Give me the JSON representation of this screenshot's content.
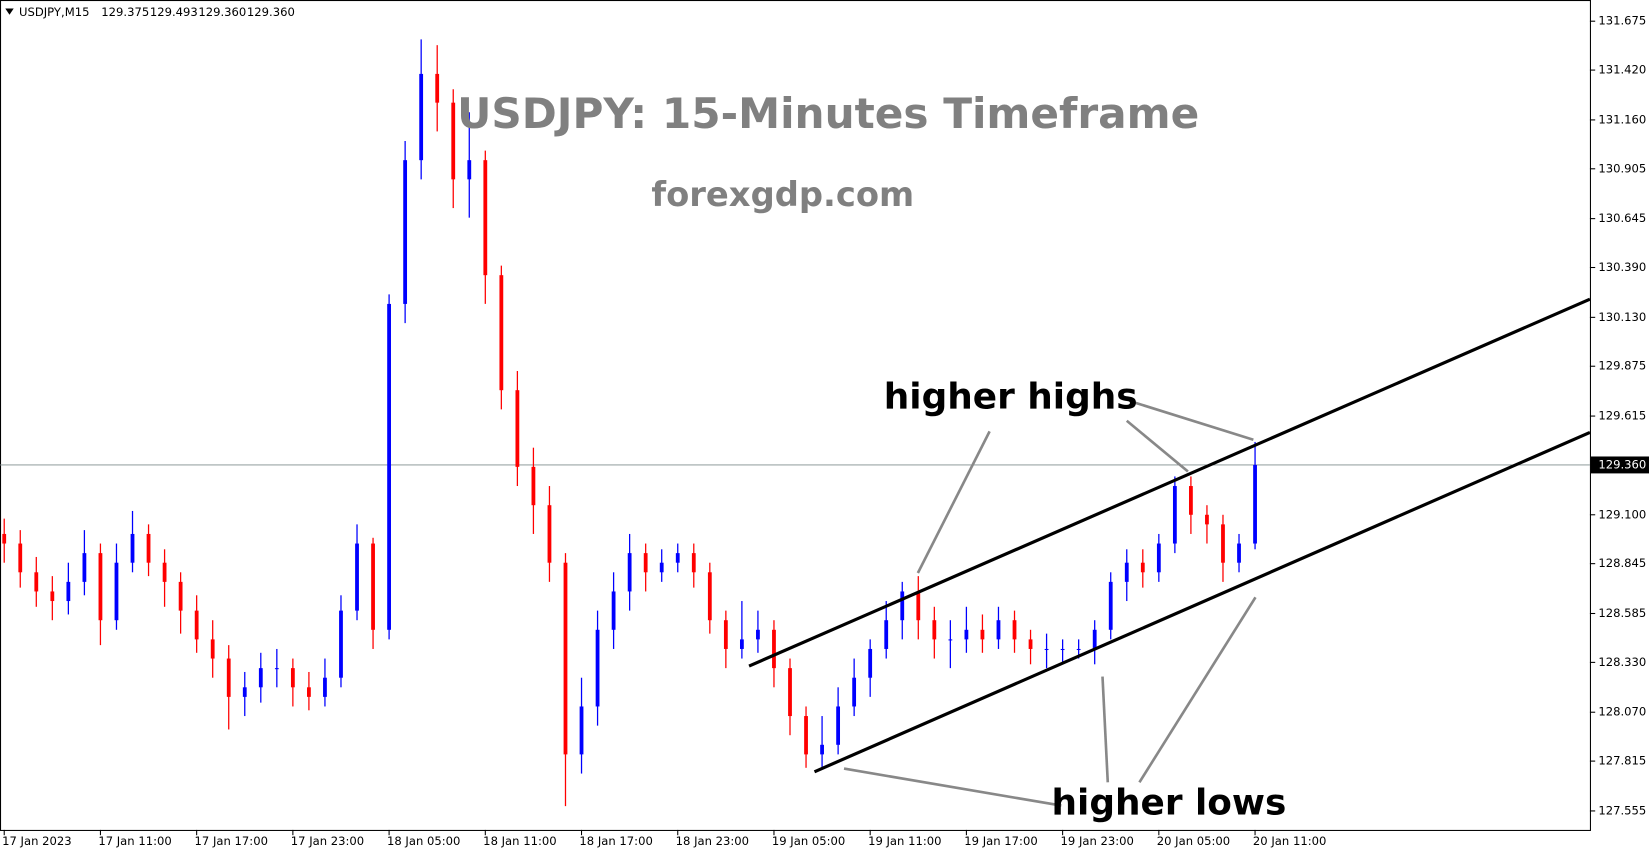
{
  "chart_data": {
    "type": "candlestick",
    "title": "USDJPY: 15-Minutes Timeframe",
    "subtitle": "forexgdp.com",
    "symbol": "USDJPY,M15",
    "quote": [
      {
        "value": 129.375,
        "label": "129.375"
      },
      {
        "value": 129.493,
        "label": "129.493"
      },
      {
        "value": 129.36,
        "label": "129.360"
      },
      {
        "value": 129.36,
        "label": "129.360"
      }
    ],
    "annotations": [
      "higher highs",
      "higher lows"
    ],
    "current_price": {
      "value": 129.36,
      "label": "129.360"
    },
    "up_color": "#0000ff",
    "down_color": "#ff0000",
    "categories": [
      "17 Jan 2023",
      null,
      null,
      null,
      null,
      null,
      "17 Jan 11:00",
      null,
      null,
      null,
      null,
      null,
      "17 Jan 17:00",
      null,
      null,
      null,
      null,
      null,
      "17 Jan 23:00",
      null,
      null,
      null,
      null,
      null,
      "18 Jan 05:00",
      null,
      null,
      null,
      null,
      null,
      "18 Jan 11:00",
      null,
      null,
      null,
      null,
      null,
      "18 Jan 17:00",
      null,
      null,
      null,
      null,
      null,
      "18 Jan 23:00",
      null,
      null,
      null,
      null,
      null,
      "19 Jan 05:00",
      null,
      null,
      null,
      null,
      null,
      "19 Jan 11:00",
      null,
      null,
      null,
      null,
      null,
      "19 Jan 17:00",
      null,
      null,
      null,
      null,
      null,
      "19 Jan 23:00",
      null,
      null,
      null,
      null,
      null,
      "20 Jan 05:00",
      null,
      null,
      null,
      null,
      null,
      "20 Jan 11:00"
    ],
    "open": [
      129.0,
      128.95,
      128.8,
      128.7,
      128.65,
      128.75,
      128.9,
      128.55,
      128.85,
      129.0,
      128.85,
      128.75,
      128.6,
      128.45,
      128.35,
      128.15,
      128.2,
      128.3,
      128.3,
      128.2,
      128.15,
      128.25,
      128.6,
      128.95,
      128.5,
      130.2,
      130.95,
      131.4,
      131.25,
      130.85,
      130.95,
      130.35,
      129.75,
      129.35,
      129.15,
      128.85,
      127.85,
      128.1,
      128.5,
      128.7,
      128.9,
      128.8,
      128.85,
      128.9,
      128.8,
      128.55,
      128.4,
      128.45,
      128.5,
      128.3,
      128.05,
      127.85,
      127.9,
      128.1,
      128.25,
      128.4,
      128.55,
      128.7,
      128.55,
      128.45,
      128.45,
      128.5,
      128.45,
      128.55,
      128.45,
      128.4,
      128.4,
      128.4,
      128.4,
      128.5,
      128.75,
      128.85,
      128.8,
      128.95,
      129.25,
      129.1,
      129.05,
      128.85,
      128.95
    ],
    "high": [
      129.08,
      129.02,
      128.88,
      128.78,
      128.85,
      129.02,
      128.95,
      128.95,
      129.12,
      129.05,
      128.92,
      128.8,
      128.68,
      128.55,
      128.42,
      128.28,
      128.38,
      128.4,
      128.35,
      128.28,
      128.35,
      128.68,
      129.05,
      128.98,
      130.25,
      131.05,
      131.58,
      131.55,
      131.32,
      131.2,
      131.0,
      130.4,
      129.85,
      129.45,
      129.25,
      128.9,
      128.25,
      128.6,
      128.8,
      129.0,
      128.95,
      128.92,
      128.95,
      128.95,
      128.85,
      128.6,
      128.65,
      128.6,
      128.55,
      128.35,
      128.1,
      128.05,
      128.2,
      128.35,
      128.45,
      128.65,
      128.75,
      128.78,
      128.62,
      128.55,
      128.62,
      128.58,
      128.62,
      128.6,
      128.5,
      128.48,
      128.45,
      128.45,
      128.55,
      128.8,
      128.92,
      128.92,
      129.0,
      129.3,
      129.3,
      129.15,
      129.1,
      129.0,
      129.48
    ],
    "low": [
      128.85,
      128.72,
      128.62,
      128.55,
      128.58,
      128.68,
      128.42,
      128.5,
      128.8,
      128.78,
      128.62,
      128.48,
      128.38,
      128.25,
      127.98,
      128.05,
      128.12,
      128.2,
      128.1,
      128.08,
      128.1,
      128.2,
      128.55,
      128.4,
      128.45,
      130.1,
      130.85,
      131.1,
      130.7,
      130.65,
      130.2,
      129.65,
      129.25,
      129.0,
      128.75,
      127.58,
      127.75,
      128.0,
      128.4,
      128.6,
      128.7,
      128.75,
      128.8,
      128.72,
      128.48,
      128.3,
      128.35,
      128.38,
      128.2,
      127.95,
      127.78,
      127.78,
      127.85,
      128.05,
      128.15,
      128.35,
      128.45,
      128.45,
      128.35,
      128.3,
      128.38,
      128.38,
      128.4,
      128.38,
      128.32,
      128.3,
      128.32,
      128.35,
      128.32,
      128.45,
      128.65,
      128.72,
      128.75,
      128.9,
      129.0,
      128.95,
      128.75,
      128.8,
      128.92
    ],
    "close": [
      128.95,
      128.8,
      128.7,
      128.65,
      128.75,
      128.9,
      128.55,
      128.85,
      129.0,
      128.85,
      128.75,
      128.6,
      128.45,
      128.35,
      128.15,
      128.2,
      128.3,
      128.3,
      128.2,
      128.15,
      128.25,
      128.6,
      128.95,
      128.5,
      130.2,
      130.95,
      131.4,
      131.25,
      130.85,
      130.95,
      130.35,
      129.75,
      129.35,
      129.15,
      128.85,
      127.85,
      128.1,
      128.5,
      128.7,
      128.9,
      128.8,
      128.85,
      128.9,
      128.8,
      128.55,
      128.4,
      128.45,
      128.5,
      128.3,
      128.05,
      127.85,
      127.9,
      128.1,
      128.25,
      128.4,
      128.55,
      128.7,
      128.55,
      128.45,
      128.45,
      128.5,
      128.45,
      128.55,
      128.45,
      128.4,
      128.4,
      128.4,
      128.4,
      128.5,
      128.75,
      128.85,
      128.8,
      128.95,
      129.25,
      129.1,
      129.05,
      128.85,
      128.95,
      129.36
    ],
    "ylim": [
      127.456,
      131.758
    ],
    "yticks": [
      127.555,
      127.815,
      {
        "value": 128.07,
        "label": "128.070"
      },
      {
        "value": 128.33,
        "label": "128.330"
      },
      128.585,
      128.845,
      {
        "value": 129.1,
        "label": "129.100"
      },
      129.615,
      129.875,
      {
        "value": 130.13,
        "label": "130.130"
      },
      {
        "value": 130.39,
        "label": "130.390"
      },
      130.645,
      130.905,
      {
        "value": 131.16,
        "label": "131.160"
      },
      {
        "value": 131.42,
        "label": "131.420"
      },
      131.675
    ]
  }
}
